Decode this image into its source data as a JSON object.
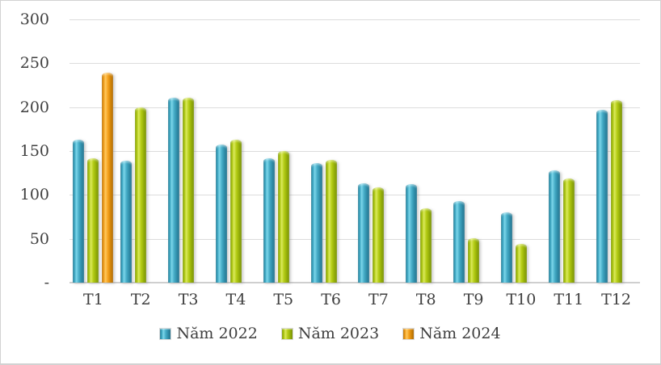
{
  "chart_data": {
    "type": "bar",
    "title": "",
    "xlabel": "",
    "ylabel": "",
    "ylim": [
      0,
      300
    ],
    "ytick_step": 50,
    "grid": true,
    "legend_position": "bottom",
    "categories": [
      "T1",
      "T2",
      "T3",
      "T4",
      "T5",
      "T6",
      "T7",
      "T8",
      "T9",
      "T10",
      "T11",
      "T12"
    ],
    "yticks": [
      {
        "value": 300,
        "label": "300"
      },
      {
        "value": 250,
        "label": "250"
      },
      {
        "value": 200,
        "label": "200"
      },
      {
        "value": 150,
        "label": "150"
      },
      {
        "value": 100,
        "label": "100"
      },
      {
        "value": 50,
        "label": "50"
      },
      {
        "value": 0,
        "label": "-"
      }
    ],
    "series": [
      {
        "name": "Năm 2022",
        "color": "#3FA6C2",
        "values": [
          163,
          139,
          211,
          157,
          142,
          136,
          113,
          112,
          93,
          80,
          128,
          197
        ]
      },
      {
        "name": "Năm 2023",
        "color": "#AFC90F",
        "values": [
          142,
          200,
          211,
          163,
          150,
          140,
          109,
          85,
          51,
          44,
          119,
          208
        ]
      },
      {
        "name": "Năm 2024",
        "color": "#F39B0F",
        "values": [
          239,
          null,
          null,
          null,
          null,
          null,
          null,
          null,
          null,
          null,
          null,
          null
        ]
      }
    ]
  },
  "colors": {
    "background": "#ffffff",
    "border": "#d2d2d2",
    "gridline": "#dcdcdc",
    "text": "#3f3f3f"
  }
}
